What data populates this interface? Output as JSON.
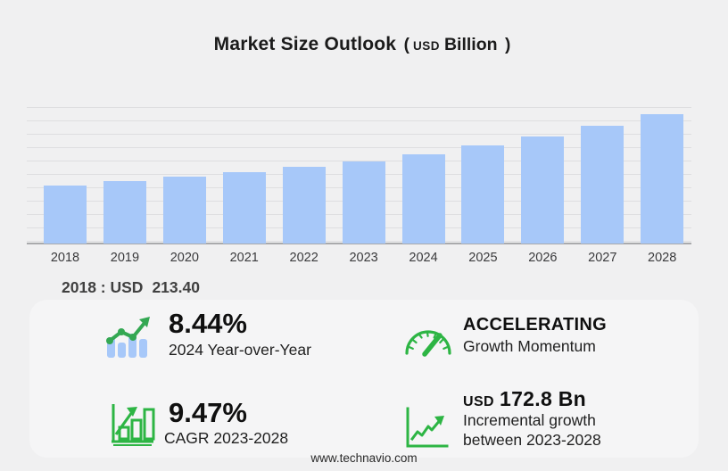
{
  "title": {
    "main": "Market Size Outlook",
    "paren_open": "(",
    "currency": "USD",
    "unit": "Billion",
    "paren_close": ")"
  },
  "chart_data": {
    "type": "bar",
    "categories": [
      "2018",
      "2019",
      "2020",
      "2021",
      "2022",
      "2023",
      "2024",
      "2025",
      "2026",
      "2027",
      "2028"
    ],
    "values": [
      213.4,
      228.8,
      245.2,
      262.8,
      281.8,
      302.1,
      327.6,
      359.5,
      394.4,
      432.8,
      474.9
    ],
    "title": "Market Size Outlook (USD Billion)",
    "xlabel": "",
    "ylabel": "",
    "ylim": [
      0,
      500
    ],
    "grid": true,
    "legend": false,
    "bar_color": "#a7c8f9",
    "note": "only 2018 value (USD 213.40) is labeled on screen; remaining values estimated from bar heights"
  },
  "annotation": {
    "base_year_label": "2018 : USD",
    "base_year_value": "213.40"
  },
  "stats": [
    {
      "icon": "yoy-bar-trend-icon",
      "value": "8.44%",
      "label": "2024 Year-over-Year"
    },
    {
      "icon": "gauge-icon",
      "value": "ACCELERATING",
      "label": "Growth Momentum"
    },
    {
      "icon": "cagr-bars-icon",
      "value": "9.47%",
      "label": "CAGR 2023-2028"
    },
    {
      "icon": "incremental-growth-icon",
      "value_prefix": "USD",
      "value": "172.8 Bn",
      "label_line1": "Incremental growth",
      "label_line2": "between 2023-2028"
    }
  ],
  "footer": {
    "url": "www.technavio.com"
  },
  "colors": {
    "background": "#f0f0f1",
    "bar": "#a7c8f9",
    "green": "#2db544",
    "green_dark": "#34a853"
  }
}
